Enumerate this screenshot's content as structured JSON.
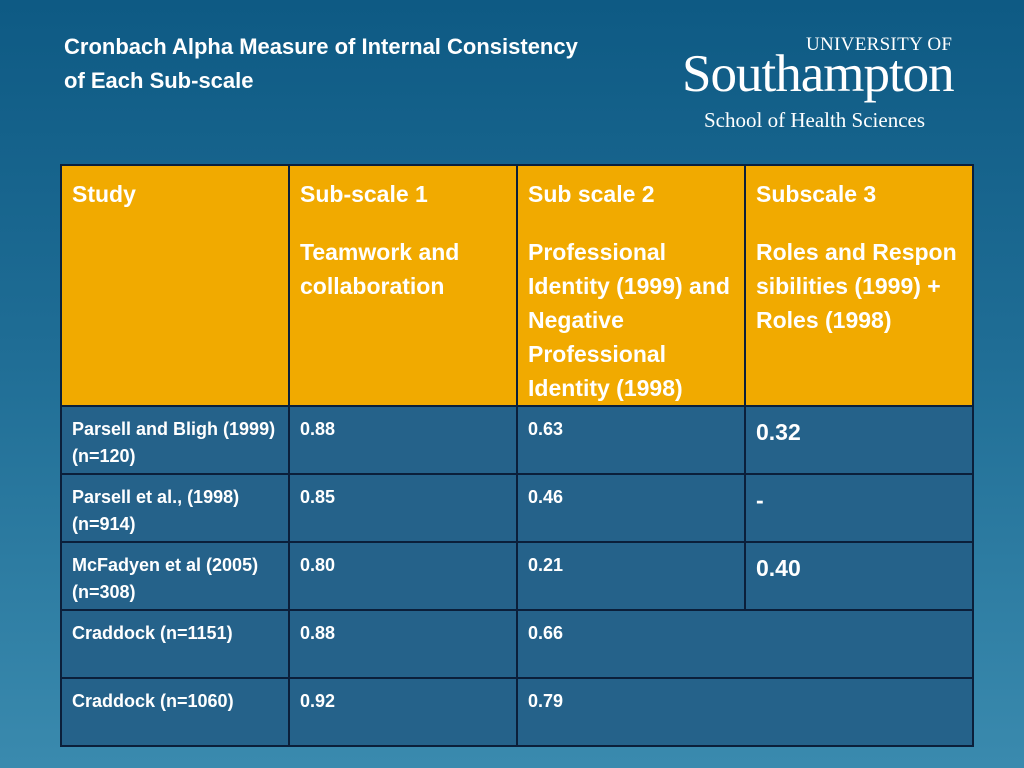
{
  "slide": {
    "title": "Cronbach Alpha Measure of Internal Consistency of Each Sub-scale"
  },
  "logo": {
    "top": "UNIVERSITY OF",
    "main": "Southampton",
    "sub": "School of Health Sciences"
  },
  "table": {
    "headers": [
      {
        "line1": "Study",
        "line2": ""
      },
      {
        "line1": "Sub-scale 1",
        "line2": "Teamwork and collaboration"
      },
      {
        "line1": "Sub scale 2",
        "line2": "Professional Identity (1999) and Negative Professional Identity (1998)"
      },
      {
        "line1": "Subscale 3",
        "line2": "Roles and Responsibilities (1999) + Roles (1998)"
      }
    ],
    "rows": [
      {
        "study": "Parsell and Bligh (1999) (n=120)",
        "s1": "0.88",
        "s2": "0.63",
        "s3": "0.32"
      },
      {
        "study": "Parsell et al., (1998) (n=914)",
        "s1": "0.85",
        "s2": "0.46",
        "s3": "-"
      },
      {
        "study": "McFadyen et al (2005) (n=308)",
        "s1": "0.80",
        "s2": "0.21",
        "s3": "0.40"
      },
      {
        "study": "Craddock (n=1151)",
        "s1": "0.88",
        "s2": "0.66"
      },
      {
        "study": "Craddock (n=1060)",
        "s1": "0.92",
        "s2": "0.79"
      }
    ]
  },
  "colors": {
    "header_bg": "#f1aa00",
    "row_bg": "#25628a",
    "border": "#0b1f3a",
    "background_top": "#0e5a84"
  }
}
